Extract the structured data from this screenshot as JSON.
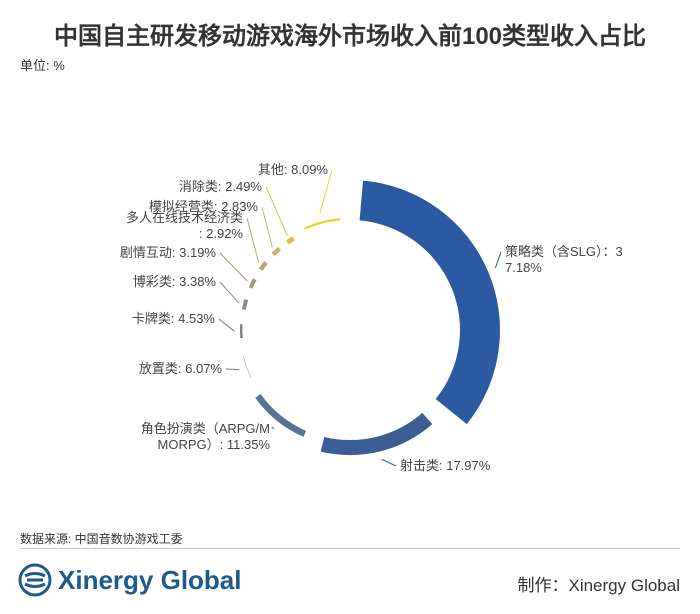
{
  "title": "中国自主研发移动游戏海外市场收入前100类型收入占比",
  "unit_label": "单位: %",
  "chart_data": {
    "type": "pie",
    "title": "中国自主研发移动游戏海外市场收入前100类型收入占比",
    "unit": "%",
    "slices": [
      {
        "label": "策略类（含SLG）",
        "value": 37.18,
        "color": "#2b5aa3",
        "label_lines": [
          "策略类（含SLG）：3",
          "7.18%"
        ]
      },
      {
        "label": "射击类",
        "value": 17.97,
        "color": "#3b5f95",
        "label_lines": [
          "射击类: 17.97%"
        ]
      },
      {
        "label": "角色扮演类（ARPG/MORPG）",
        "value": 11.35,
        "color": "#5a7394",
        "label_lines": [
          "角色扮演类（ARPG/M",
          "MORPG）: 11.35%"
        ]
      },
      {
        "label": "放置类",
        "value": 6.07,
        "color": "#6d7a84",
        "label_lines": [
          "放置类: 6.07%"
        ]
      },
      {
        "label": "卡牌类",
        "value": 4.53,
        "color": "#7c8178",
        "label_lines": [
          "卡牌类: 4.53%"
        ]
      },
      {
        "label": "博彩类",
        "value": 3.38,
        "color": "#8d8d80",
        "label_lines": [
          "博彩类: 3.38%"
        ]
      },
      {
        "label": "剧情互动",
        "value": 3.19,
        "color": "#a39a7a",
        "label_lines": [
          "剧情互动: 3.19%"
        ]
      },
      {
        "label": "多人在线技术经济类",
        "value": 2.92,
        "color": "#b9a770",
        "label_lines": [
          "多人在线技术经济类",
          ": 2.92%"
        ]
      },
      {
        "label": "模拟经营类",
        "value": 2.83,
        "color": "#cdb466",
        "label_lines": [
          "模拟经营类: 2.83%"
        ]
      },
      {
        "label": "消除类",
        "value": 2.49,
        "color": "#e0c14f",
        "label_lines": [
          "消除类: 2.49%"
        ]
      },
      {
        "label": "其他",
        "value": 8.09,
        "color": "#f2cd3a",
        "label_lines": [
          "其他: 8.09%"
        ]
      }
    ]
  },
  "source": "数据来源: 中国音数协游戏工委",
  "logo_text": "Xinergy Global",
  "credit": "制作：Xinergy Global"
}
